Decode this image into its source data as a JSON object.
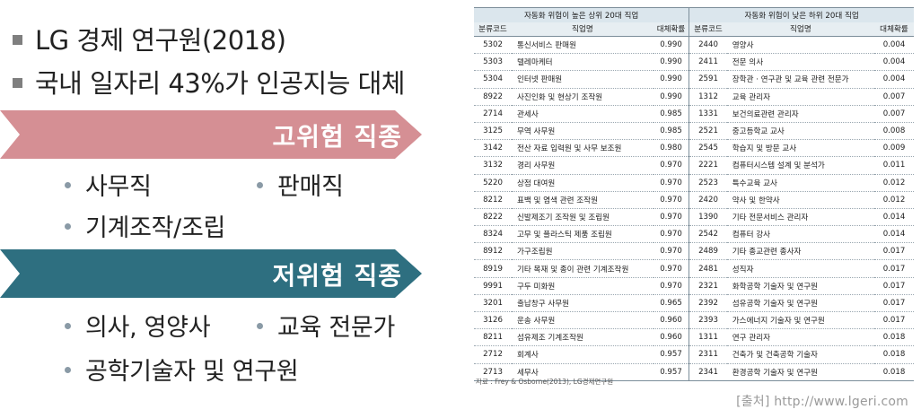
{
  "left": {
    "bullets": [
      "LG 경제 연구원(2018)",
      "국내 일자리 43%가 인공지능 대체"
    ],
    "high_risk": {
      "label": "고위험 직종",
      "color": "#d58f94",
      "items": [
        "사무직",
        "판매직",
        "기계조작/조립"
      ]
    },
    "low_risk": {
      "label": "저위험 직종",
      "color": "#2e6f80",
      "items": [
        "의사, 영양사",
        "교육 전문가",
        "공학기술자 및 연구원"
      ]
    }
  },
  "table": {
    "group_headers": [
      "자동화 위험이 높은 상위 20대 직업",
      "자동화 위험이 낮은 하위 20대 직업"
    ],
    "columns": [
      "분류코드",
      "직업명",
      "대체확률",
      "분류코드",
      "직업명",
      "대체확률"
    ],
    "rows": [
      [
        "5302",
        "통신서비스 판매원",
        "0.990",
        "2440",
        "영양사",
        "0.004"
      ],
      [
        "5303",
        "텔레마케터",
        "0.990",
        "2411",
        "전문 의사",
        "0.004"
      ],
      [
        "5304",
        "인터넷 판매원",
        "0.990",
        "2591",
        "장학관 · 연구관 및 교육 관련 전문가",
        "0.004"
      ],
      [
        "8922",
        "사진인화 및 현상기 조작원",
        "0.990",
        "1312",
        "교육 관리자",
        "0.007"
      ],
      [
        "2714",
        "관세사",
        "0.985",
        "1331",
        "보건의료관련 관리자",
        "0.007"
      ],
      [
        "3125",
        "무역 사무원",
        "0.985",
        "2521",
        "중고등학교 교사",
        "0.008"
      ],
      [
        "3142",
        "전산 자료 입력원 및 사무 보조원",
        "0.980",
        "2545",
        "학습지 및 방문 교사",
        "0.009"
      ],
      [
        "3132",
        "경리 사무원",
        "0.970",
        "2221",
        "컴퓨터시스템 설계 및 분석가",
        "0.011"
      ],
      [
        "5220",
        "상점 대여원",
        "0.970",
        "2523",
        "특수교육 교사",
        "0.012"
      ],
      [
        "8212",
        "표백 및 염색 관련 조작원",
        "0.970",
        "2420",
        "약사 및 한약사",
        "0.012"
      ],
      [
        "8222",
        "신발제조기 조작원 및 조립원",
        "0.970",
        "1390",
        "기타 전문서비스 관리자",
        "0.014"
      ],
      [
        "8324",
        "고무 및 플라스틱 제품 조립원",
        "0.970",
        "2542",
        "컴퓨터 강사",
        "0.014"
      ],
      [
        "8912",
        "가구조립원",
        "0.970",
        "2489",
        "기타 종교관련 종사자",
        "0.017"
      ],
      [
        "8919",
        "기타 목재 및 종이 관련 기계조작원",
        "0.970",
        "2481",
        "성직자",
        "0.017"
      ],
      [
        "9991",
        "구두 미화원",
        "0.970",
        "2321",
        "화학공학 기술자 및 연구원",
        "0.017"
      ],
      [
        "3201",
        "출납창구 사무원",
        "0.965",
        "2392",
        "섬유공학 기술자 및 연구원",
        "0.017"
      ],
      [
        "3126",
        "운송 사무원",
        "0.960",
        "2393",
        "가스에너지 기술자 및 연구원",
        "0.017"
      ],
      [
        "8211",
        "섬유제조 기계조작원",
        "0.960",
        "1311",
        "연구 관리자",
        "0.018"
      ],
      [
        "2712",
        "회계사",
        "0.957",
        "2311",
        "건축가 및 건축공학 기술자",
        "0.018"
      ],
      [
        "2713",
        "세무사",
        "0.957",
        "2341",
        "환경공학 기술자 및 연구원",
        "0.018"
      ]
    ],
    "source_note": "자료 : Frey & Osborne(2013), LG경제연구원"
  },
  "source_site": "[출처] http://www.lgeri.com"
}
